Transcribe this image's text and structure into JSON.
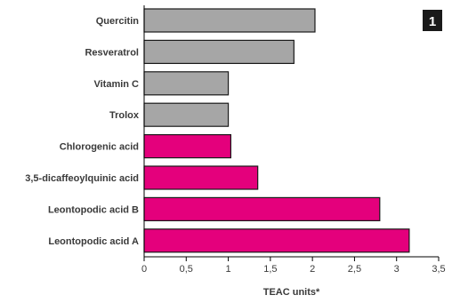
{
  "chart_data": {
    "type": "bar",
    "orientation": "horizontal",
    "badge": "1",
    "xlabel": "TEAC units*",
    "ylabel": "",
    "xlim": [
      0,
      3.5
    ],
    "xticks": [
      "0",
      "0,5",
      "1",
      "1,5",
      "2",
      "2,5",
      "3",
      "3,5"
    ],
    "categories": [
      "Quercitin",
      "Resveratrol",
      "Vitamin C",
      "Trolox",
      "Chlorogenic acid",
      "3,5-dicaffeoylquinic acid",
      "Leontopodic acid B",
      "Leontopodic acid A"
    ],
    "values": [
      2.03,
      1.78,
      1.0,
      1.0,
      1.03,
      1.35,
      2.8,
      3.15
    ],
    "bar_colors": [
      "#a6a6a6",
      "#a6a6a6",
      "#a6a6a6",
      "#a6a6a6",
      "#e4007c",
      "#e4007c",
      "#e4007c",
      "#e4007c"
    ],
    "grid": false,
    "legend": "none"
  }
}
